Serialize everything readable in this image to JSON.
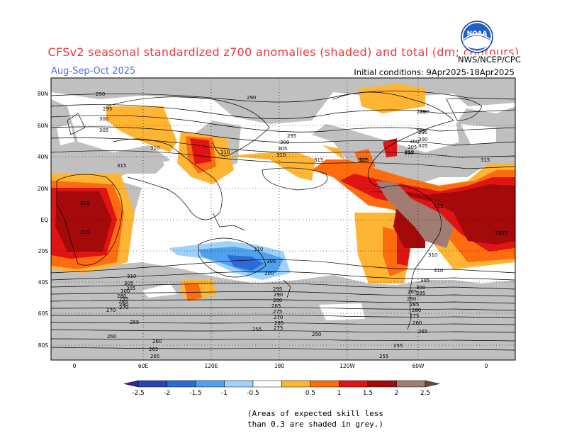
{
  "header": {
    "title": "CFSv2 seasonal standardized z700 anomalies (shaded) and total (dm; contours)",
    "period": "Aug-Sep-Oct 2025",
    "initial_conditions": "Initial conditions: 9Apr2025-18Apr2025",
    "agency": "NWS/NCEP/CPC",
    "logo_text": "NOAA"
  },
  "map": {
    "lat_labels": [
      "80N",
      "60N",
      "40N",
      "20N",
      "EQ",
      "20S",
      "40S",
      "60S",
      "80S"
    ],
    "lon_labels": [
      "0",
      "60E",
      "120E",
      "180",
      "120W",
      "60W",
      "0"
    ],
    "contour_labels": [
      "290",
      "290",
      "295",
      "300",
      "305",
      "310",
      "315",
      "315",
      "290",
      "295",
      "300",
      "305",
      "310",
      "315",
      "310",
      "305",
      "300",
      "295",
      "310",
      "305",
      "315",
      "295",
      "300",
      "305",
      "310",
      "315",
      "315",
      "315",
      "310",
      "305",
      "300",
      "295",
      "290",
      "285",
      "280",
      "275",
      "270",
      "265",
      "260",
      "255",
      "250",
      "255",
      "260",
      "265",
      "255",
      "280",
      "285",
      "270",
      "275",
      "280",
      "285",
      "255",
      "265",
      "260",
      "310",
      "305",
      "300",
      "295",
      "290",
      "285",
      "280",
      "275",
      "270",
      "265",
      "315",
      "315",
      "310",
      "315",
      "290",
      "295",
      "300",
      "305",
      "310"
    ],
    "shading_colors": {
      "skill_grey": "#c0c0c0",
      "pos_0_5": "#ffb534",
      "pos_1": "#fd6d0f",
      "pos_1_5": "#e01414",
      "pos_2": "#a50a0a",
      "pos_2_5": "#a17c72",
      "neg_0_5": "#9fd2fa",
      "neg_1": "#50a0f0",
      "neg_1_5": "#2d6cd8",
      "neg_2": "#2746b0",
      "neg_2_5": "#3a1fa0"
    }
  },
  "colorbar": {
    "labels": [
      "-2.5",
      "-2",
      "-1.5",
      "-1",
      "-0.5",
      "0.5",
      "1",
      "1.5",
      "2",
      "2.5"
    ],
    "colors": [
      "#3a1fa0",
      "#2746b0",
      "#2d6cd8",
      "#50a0f0",
      "#9fd2fa",
      "#ffffff",
      "#ffb534",
      "#fd6d0f",
      "#e01414",
      "#a50a0a",
      "#a17c72",
      "#6a4a40"
    ]
  },
  "skill_note": {
    "line1": "(Areas of expected skill less",
    "line2": "than 0.3 are shaded in grey.)"
  }
}
